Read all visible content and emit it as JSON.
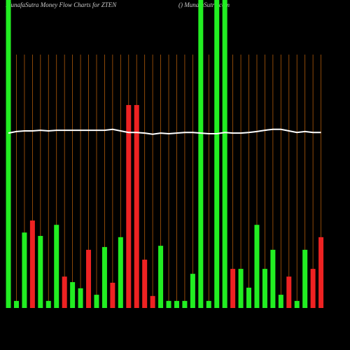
{
  "chart_data": {
    "type": "bar",
    "title": "MunafaSutra  Money Flow  Charts for ZTEN",
    "subtitle": "() MunafaSutra.com",
    "ylim": [
      0,
      100
    ],
    "values": [
      100,
      2.3,
      24.5,
      28.4,
      23.4,
      2.3,
      27,
      10.2,
      8.4,
      6.4,
      18.9,
      4.3,
      19.8,
      8.2,
      23,
      65.9,
      65.9,
      15.7,
      3.9,
      20.2,
      2.3,
      2.3,
      2.3,
      11.1,
      100,
      2.3,
      100,
      100,
      12.7,
      12.7,
      6.6,
      27,
      12.7,
      18.9,
      4.3,
      10.2,
      2.3,
      18.9,
      12.7,
      23
    ],
    "colors": [
      "#22ee22",
      "#22ee22",
      "#22ee22",
      "#ee2222",
      "#22ee22",
      "#22ee22",
      "#22ee22",
      "#ee2222",
      "#22ee22",
      "#22ee22",
      "#ee2222",
      "#22ee22",
      "#22ee22",
      "#ee2222",
      "#22ee22",
      "#ee2222",
      "#ee2222",
      "#ee2222",
      "#ee2222",
      "#22ee22",
      "#22ee22",
      "#22ee22",
      "#22ee22",
      "#22ee22",
      "#22ee22",
      "#22ee22",
      "#22ee22",
      "#22ee22",
      "#ee2222",
      "#22ee22",
      "#22ee22",
      "#22ee22",
      "#22ee22",
      "#22ee22",
      "#22ee22",
      "#ee2222",
      "#22ee22",
      "#22ee22",
      "#ee2222",
      "#ee2222"
    ],
    "line": {
      "color": "#ffffff",
      "values": [
        56.8,
        57.3,
        57.5,
        57.5,
        57.7,
        57.5,
        57.7,
        57.7,
        57.7,
        57.7,
        57.7,
        57.7,
        57.7,
        58,
        57.5,
        57,
        57,
        56.8,
        56.4,
        56.8,
        56.6,
        56.8,
        57,
        57,
        56.8,
        56.6,
        56.6,
        57,
        56.8,
        56.8,
        57,
        57.3,
        57.7,
        58,
        58,
        57.5,
        57,
        57.3,
        57,
        57
      ]
    }
  }
}
